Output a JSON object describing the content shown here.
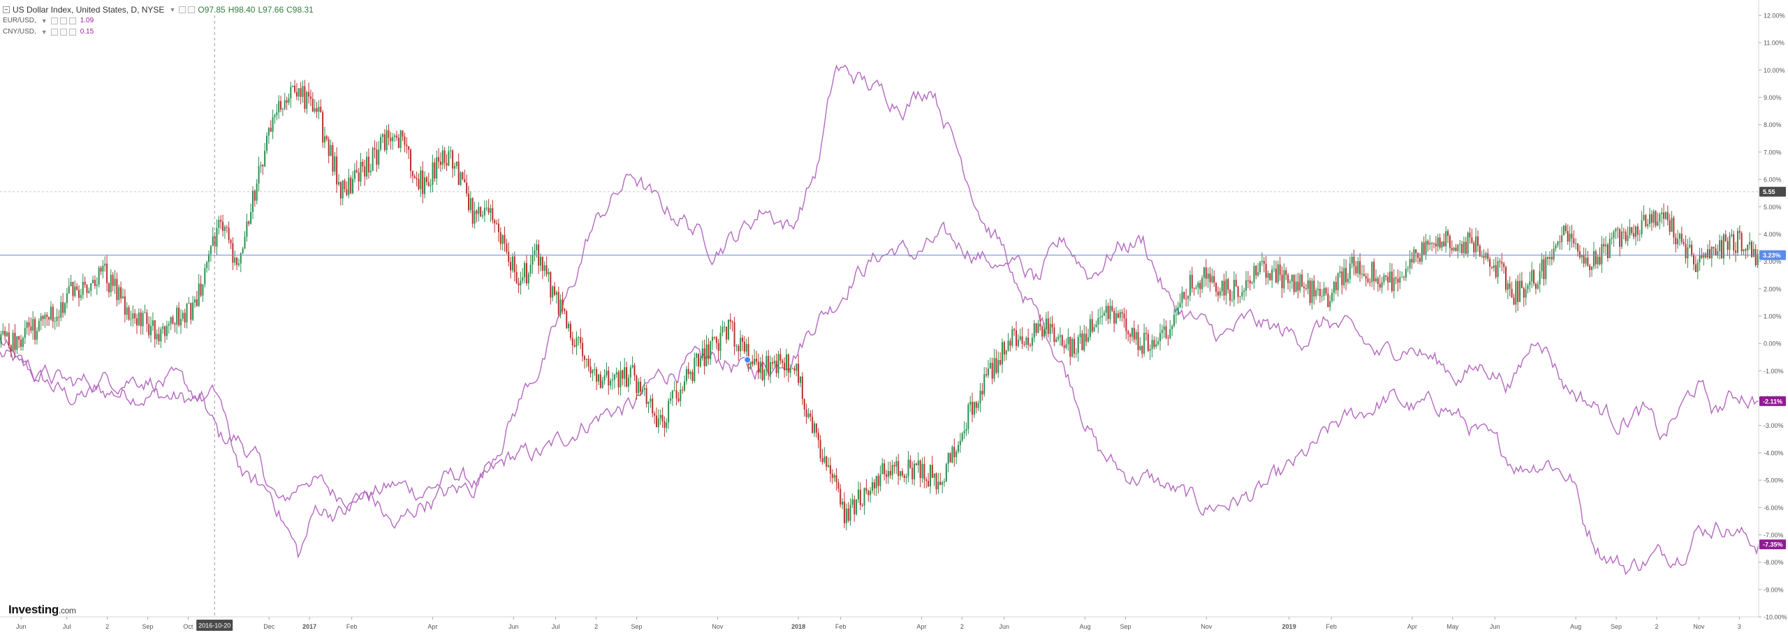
{
  "legend": {
    "main": {
      "symbol": "US Dollar Index, United States, D, NYSE",
      "open": "O97.85",
      "high": "H98.40",
      "low": "L97.66",
      "close": "C98.31"
    },
    "series": [
      {
        "symbol": "EUR/USD,",
        "value": "1.09"
      },
      {
        "symbol": "CNY/USD,",
        "value": "0.15"
      }
    ]
  },
  "logo": {
    "name": "Investing",
    "suffix": ".com"
  },
  "colors": {
    "up": "#2d8f4e",
    "down": "#b8312f",
    "compare": "#b469c0",
    "price_line": "#6b88d8",
    "badge_blue": "#5b8ce8",
    "badge_purple": "#8f1d92",
    "badge_dark": "#4a4a4a"
  },
  "chart_data": {
    "type": "line",
    "y_axis": {
      "unit": "%",
      "ylim": [
        -10,
        12
      ],
      "ticks": [
        "12.00%",
        "11.00%",
        "10.00%",
        "9.00%",
        "8.00%",
        "7.00%",
        "6.00%",
        "5.00%",
        "4.00%",
        "3.00%",
        "2.00%",
        "1.00%",
        "0.00%",
        "-1.00%",
        "-2.00%",
        "-3.00%",
        "-4.00%",
        "-5.00%",
        "-6.00%",
        "-7.00%",
        "-8.00%",
        "-9.00%",
        "-10.00%"
      ]
    },
    "x_axis": {
      "ticks": [
        {
          "label": "Jun",
          "i": 0.012
        },
        {
          "label": "Jul",
          "i": 0.038
        },
        {
          "label": "2",
          "i": 0.061
        },
        {
          "label": "Sep",
          "i": 0.084
        },
        {
          "label": "Oct",
          "i": 0.107
        },
        {
          "label": "Dec",
          "i": 0.153
        },
        {
          "label": "2017",
          "i": 0.176
        },
        {
          "label": "Feb",
          "i": 0.2
        },
        {
          "label": "Apr",
          "i": 0.246
        },
        {
          "label": "Jun",
          "i": 0.292
        },
        {
          "label": "Jul",
          "i": 0.316
        },
        {
          "label": "2",
          "i": 0.339
        },
        {
          "label": "Sep",
          "i": 0.362
        },
        {
          "label": "Nov",
          "i": 0.408
        },
        {
          "label": "2018",
          "i": 0.454
        },
        {
          "label": "Feb",
          "i": 0.478
        },
        {
          "label": "Apr",
          "i": 0.524
        },
        {
          "label": "2",
          "i": 0.547
        },
        {
          "label": "Jun",
          "i": 0.571
        },
        {
          "label": "Aug",
          "i": 0.617
        },
        {
          "label": "Sep",
          "i": 0.64
        },
        {
          "label": "Nov",
          "i": 0.686
        },
        {
          "label": "2019",
          "i": 0.733
        },
        {
          "label": "Feb",
          "i": 0.757
        },
        {
          "label": "Apr",
          "i": 0.803
        },
        {
          "label": "May",
          "i": 0.826
        },
        {
          "label": "Jun",
          "i": 0.85
        },
        {
          "label": "Aug",
          "i": 0.896
        },
        {
          "label": "Sep",
          "i": 0.919
        },
        {
          "label": "2",
          "i": 0.942
        },
        {
          "label": "Nov",
          "i": 0.966
        },
        {
          "label": "3",
          "i": 0.989
        }
      ],
      "crosshair_label": "2016-10-20"
    },
    "badges": {
      "reference": "5.55",
      "main": "3.23%",
      "series1": "-2.11%",
      "series2": "-7.35%"
    },
    "reference_level": 5.55,
    "main_level": 3.23,
    "main_series": {
      "name": "US Dollar Index",
      "knots": [
        [
          0,
          0
        ],
        [
          0.02,
          0.5
        ],
        [
          0.04,
          1.8
        ],
        [
          0.06,
          2.5
        ],
        [
          0.075,
          1
        ],
        [
          0.09,
          0.5
        ],
        [
          0.11,
          1.2
        ],
        [
          0.125,
          4.5
        ],
        [
          0.135,
          3
        ],
        [
          0.15,
          7
        ],
        [
          0.165,
          9.5
        ],
        [
          0.18,
          8.5
        ],
        [
          0.195,
          5.5
        ],
        [
          0.225,
          7.8
        ],
        [
          0.24,
          5.8
        ],
        [
          0.255,
          7
        ],
        [
          0.27,
          4.5
        ],
        [
          0.28,
          4.8
        ],
        [
          0.295,
          2.2
        ],
        [
          0.305,
          3.2
        ],
        [
          0.32,
          1
        ],
        [
          0.34,
          -1.5
        ],
        [
          0.36,
          -1.2
        ],
        [
          0.375,
          -3
        ],
        [
          0.39,
          -1.2
        ],
        [
          0.415,
          0.5
        ],
        [
          0.43,
          -1
        ],
        [
          0.45,
          -0.6
        ],
        [
          0.465,
          -3.5
        ],
        [
          0.48,
          -6.3
        ],
        [
          0.5,
          -4.8
        ],
        [
          0.52,
          -4.6
        ],
        [
          0.535,
          -5
        ],
        [
          0.555,
          -2
        ],
        [
          0.575,
          0.2
        ],
        [
          0.595,
          0.5
        ],
        [
          0.61,
          -0.3
        ],
        [
          0.63,
          1.3
        ],
        [
          0.65,
          0
        ],
        [
          0.665,
          0.5
        ],
        [
          0.68,
          2.5
        ],
        [
          0.7,
          1.8
        ],
        [
          0.72,
          2.8
        ],
        [
          0.735,
          2.2
        ],
        [
          0.755,
          1.6
        ],
        [
          0.77,
          3
        ],
        [
          0.79,
          2.2
        ],
        [
          0.805,
          3.2
        ],
        [
          0.82,
          3.8
        ],
        [
          0.845,
          3.5
        ],
        [
          0.86,
          1.8
        ],
        [
          0.875,
          2.5
        ],
        [
          0.89,
          4
        ],
        [
          0.905,
          3
        ],
        [
          0.925,
          4.2
        ],
        [
          0.945,
          4.8
        ],
        [
          0.965,
          2.8
        ],
        [
          0.985,
          3.8
        ],
        [
          1,
          3.23
        ]
      ]
    },
    "series": [
      {
        "name": "EUR/USD",
        "knots": [
          [
            0,
            -0.4
          ],
          [
            0.02,
            -1.2
          ],
          [
            0.04,
            -2
          ],
          [
            0.06,
            -1.8
          ],
          [
            0.08,
            -1.8
          ],
          [
            0.1,
            -2
          ],
          [
            0.115,
            -2.2
          ],
          [
            0.125,
            -3.5
          ],
          [
            0.135,
            -3.5
          ],
          [
            0.145,
            -4.2
          ],
          [
            0.16,
            -6
          ],
          [
            0.175,
            -4.8
          ],
          [
            0.19,
            -5.5
          ],
          [
            0.21,
            -5.5
          ],
          [
            0.225,
            -5.2
          ],
          [
            0.24,
            -5.4
          ],
          [
            0.26,
            -4.8
          ],
          [
            0.275,
            -5.2
          ],
          [
            0.29,
            -4.2
          ],
          [
            0.31,
            -4
          ],
          [
            0.33,
            -3
          ],
          [
            0.345,
            -2.5
          ],
          [
            0.36,
            -2.3
          ],
          [
            0.375,
            -1.2
          ],
          [
            0.39,
            -0.8
          ],
          [
            0.41,
            -0.6
          ],
          [
            0.425,
            -1
          ],
          [
            0.44,
            -0.8
          ],
          [
            0.455,
            0
          ],
          [
            0.465,
            1
          ],
          [
            0.475,
            1.5
          ],
          [
            0.485,
            2.5
          ],
          [
            0.5,
            3.2
          ],
          [
            0.51,
            3.5
          ],
          [
            0.52,
            3.2
          ],
          [
            0.535,
            3.8
          ],
          [
            0.55,
            3.5
          ],
          [
            0.565,
            3
          ],
          [
            0.58,
            2
          ],
          [
            0.595,
            0.5
          ],
          [
            0.61,
            -1.5
          ],
          [
            0.625,
            -4
          ],
          [
            0.64,
            -4.8
          ],
          [
            0.655,
            -5
          ],
          [
            0.67,
            -5.5
          ],
          [
            0.685,
            -6
          ],
          [
            0.7,
            -5.8
          ],
          [
            0.715,
            -5.5
          ],
          [
            0.73,
            -4.8
          ],
          [
            0.745,
            -4
          ],
          [
            0.76,
            -3
          ],
          [
            0.775,
            -2.5
          ],
          [
            0.79,
            -2
          ],
          [
            0.805,
            -2.4
          ],
          [
            0.82,
            -2.2
          ],
          [
            0.835,
            -3
          ],
          [
            0.85,
            -3.8
          ],
          [
            0.865,
            -4.5
          ],
          [
            0.88,
            -4.2
          ],
          [
            0.895,
            -5
          ],
          [
            0.9,
            -6.5
          ],
          [
            0.91,
            -7.5
          ],
          [
            0.925,
            -8.2
          ],
          [
            0.94,
            -7.8
          ],
          [
            0.955,
            -7.6
          ],
          [
            0.965,
            -6.8
          ],
          [
            0.98,
            -6.6
          ],
          [
            0.99,
            -7
          ],
          [
            1,
            -7.35
          ]
        ]
      },
      {
        "name": "CNY/USD",
        "knots": [
          [
            0,
            0
          ],
          [
            0.02,
            -1
          ],
          [
            0.04,
            -1.5
          ],
          [
            0.06,
            -1.3
          ],
          [
            0.08,
            -1.2
          ],
          [
            0.1,
            -1.5
          ],
          [
            0.115,
            -2
          ],
          [
            0.125,
            -2
          ],
          [
            0.13,
            -3.5
          ],
          [
            0.14,
            -5
          ],
          [
            0.155,
            -5.5
          ],
          [
            0.17,
            -7.8
          ],
          [
            0.18,
            -6
          ],
          [
            0.195,
            -6.2
          ],
          [
            0.21,
            -5.5
          ],
          [
            0.225,
            -6.8
          ],
          [
            0.24,
            -5.8
          ],
          [
            0.255,
            -5.5
          ],
          [
            0.27,
            -5.2
          ],
          [
            0.285,
            -3.5
          ],
          [
            0.3,
            -1.5
          ],
          [
            0.31,
            -0.5
          ],
          [
            0.325,
            2
          ],
          [
            0.335,
            4
          ],
          [
            0.345,
            5
          ],
          [
            0.36,
            6.2
          ],
          [
            0.375,
            5
          ],
          [
            0.39,
            4.5
          ],
          [
            0.405,
            3.5
          ],
          [
            0.42,
            4
          ],
          [
            0.435,
            5
          ],
          [
            0.45,
            4.2
          ],
          [
            0.465,
            6.5
          ],
          [
            0.475,
            10
          ],
          [
            0.485,
            9.8
          ],
          [
            0.5,
            9.2
          ],
          [
            0.515,
            8.8
          ],
          [
            0.53,
            9.5
          ],
          [
            0.545,
            7
          ],
          [
            0.56,
            4.5
          ],
          [
            0.575,
            3
          ],
          [
            0.59,
            2.2
          ],
          [
            0.605,
            3.8
          ],
          [
            0.62,
            2.5
          ],
          [
            0.635,
            3.5
          ],
          [
            0.65,
            3.8
          ],
          [
            0.665,
            1.5
          ],
          [
            0.68,
            0.8
          ],
          [
            0.695,
            0.2
          ],
          [
            0.71,
            0.8
          ],
          [
            0.725,
            0.5
          ],
          [
            0.74,
            0.2
          ],
          [
            0.755,
            0.8
          ],
          [
            0.77,
            0.3
          ],
          [
            0.785,
            -0.5
          ],
          [
            0.8,
            0
          ],
          [
            0.815,
            -0.6
          ],
          [
            0.83,
            -1.2
          ],
          [
            0.845,
            -0.8
          ],
          [
            0.86,
            -1.5
          ],
          [
            0.875,
            0.5
          ],
          [
            0.89,
            -1.5
          ],
          [
            0.905,
            -2.2
          ],
          [
            0.92,
            -2.8
          ],
          [
            0.935,
            -2.5
          ],
          [
            0.945,
            -3.5
          ],
          [
            0.955,
            -2.5
          ],
          [
            0.965,
            -1.5
          ],
          [
            0.975,
            -2.5
          ],
          [
            0.99,
            -1.8
          ],
          [
            1,
            -2.11
          ]
        ]
      }
    ],
    "marker": {
      "at": 0.425,
      "value": -0.6
    }
  }
}
